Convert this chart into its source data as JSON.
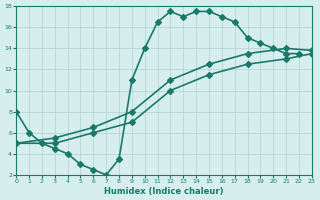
{
  "xlabel": "Humidex (Indice chaleur)",
  "bg_color": "#d6eeee",
  "grid_color": "#b0d0d0",
  "line_color": "#1a7a6a",
  "xlim": [
    0,
    23
  ],
  "ylim": [
    2,
    18
  ],
  "xticks": [
    0,
    1,
    2,
    3,
    4,
    5,
    6,
    7,
    8,
    9,
    10,
    11,
    12,
    13,
    14,
    15,
    16,
    17,
    18,
    19,
    20,
    21,
    22,
    23
  ],
  "yticks": [
    2,
    4,
    6,
    8,
    10,
    12,
    14,
    16,
    18
  ],
  "line1_x": [
    0,
    1,
    2,
    3,
    4,
    5,
    6,
    7,
    8,
    9,
    10,
    11,
    12,
    13,
    14,
    15,
    16,
    17,
    18,
    19,
    20,
    21,
    22
  ],
  "line1_y": [
    8,
    6,
    5,
    4.5,
    4,
    3,
    2.5,
    2,
    3.5,
    11,
    14,
    16.5,
    17.5,
    17,
    17.5,
    17.5,
    17,
    16.5,
    15,
    14.5,
    14,
    13.5,
    13.5
  ],
  "line2_x": [
    0,
    3,
    6,
    9,
    12,
    15,
    18,
    21,
    23
  ],
  "line2_y": [
    5,
    5,
    6,
    7,
    10,
    11.5,
    12.5,
    13,
    13.5
  ],
  "line3_x": [
    0,
    3,
    6,
    9,
    12,
    15,
    18,
    21,
    23
  ],
  "line3_y": [
    5,
    5.5,
    6.5,
    8,
    11,
    12.5,
    13.5,
    14,
    13.8
  ],
  "marker": "D",
  "markersize": 3,
  "linewidth": 1.2
}
